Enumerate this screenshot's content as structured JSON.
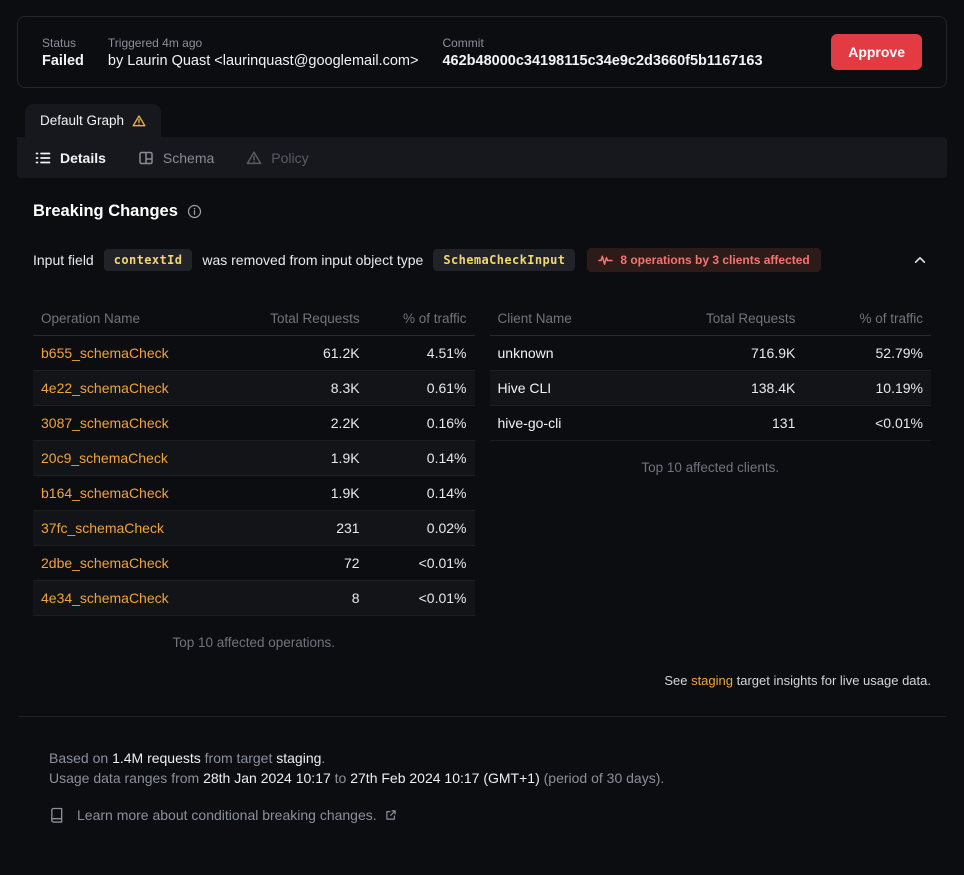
{
  "colors": {
    "accent_orange": "#f2a33c",
    "approve_red": "#e23b43",
    "badge_red_text": "#f4766e",
    "badge_red_bg": "#2d1b1a",
    "warning_amber": "#e3b341",
    "code_yellow": "#f3d673",
    "page_bg": "#0b0d11",
    "panel_bg": "#16181d"
  },
  "icons": {
    "graph_tab": "warning-triangle-icon",
    "details": "list-icon",
    "schema": "schema-columns-icon",
    "policy": "warning-triangle-icon",
    "heading": "info-circle-icon",
    "badge": "activity-pulse-icon",
    "collapse": "chevron-up-icon",
    "learn_more": "book-icon",
    "external": "external-link-icon"
  },
  "header": {
    "status_label": "Status",
    "status_value": "Failed",
    "triggered_label": "Triggered 4m ago",
    "triggered_value": "by Laurin Quast <laurinquast@googlemail.com>",
    "commit_label": "Commit",
    "commit_value": "462b48000c34198115c34e9c2d3660f5b1167163",
    "approve_label": "Approve"
  },
  "tabs": {
    "graph_tab_label": "Default Graph",
    "items": [
      {
        "label": "Details",
        "state": "active"
      },
      {
        "label": "Schema",
        "state": "muted"
      },
      {
        "label": "Policy",
        "state": "dim"
      }
    ]
  },
  "breaking_changes": {
    "title": "Breaking Changes",
    "change": {
      "prefix": "Input field",
      "field_code": "contextId",
      "middle": "was removed from input object type",
      "type_code": "SchemaCheckInput",
      "badge_label": "8 operations by 3 clients affected"
    }
  },
  "operations_table": {
    "headers": [
      "Operation Name",
      "Total Requests",
      "% of traffic"
    ],
    "rows": [
      {
        "name": "b655_schemaCheck",
        "requests": "61.2K",
        "traffic": "4.51%"
      },
      {
        "name": "4e22_schemaCheck",
        "requests": "8.3K",
        "traffic": "0.61%"
      },
      {
        "name": "3087_schemaCheck",
        "requests": "2.2K",
        "traffic": "0.16%"
      },
      {
        "name": "20c9_schemaCheck",
        "requests": "1.9K",
        "traffic": "0.14%"
      },
      {
        "name": "b164_schemaCheck",
        "requests": "1.9K",
        "traffic": "0.14%"
      },
      {
        "name": "37fc_schemaCheck",
        "requests": "231",
        "traffic": "0.02%"
      },
      {
        "name": "2dbe_schemaCheck",
        "requests": "72",
        "traffic": "<0.01%"
      },
      {
        "name": "4e34_schemaCheck",
        "requests": "8",
        "traffic": "<0.01%"
      }
    ],
    "footnote": "Top 10 affected operations."
  },
  "clients_table": {
    "headers": [
      "Client Name",
      "Total Requests",
      "% of traffic"
    ],
    "rows": [
      {
        "name": "unknown",
        "requests": "716.9K",
        "traffic": "52.79%"
      },
      {
        "name": "Hive CLI",
        "requests": "138.4K",
        "traffic": "10.19%"
      },
      {
        "name": "hive-go-cli",
        "requests": "131",
        "traffic": "<0.01%"
      }
    ],
    "footnote": "Top 10 affected clients."
  },
  "insights_note": {
    "prefix": "See ",
    "link": "staging",
    "suffix": " target insights for live usage data."
  },
  "usage_footer": {
    "line1_prefix": "Based on ",
    "line1_requests": "1.4M requests",
    "line1_mid": " from target ",
    "line1_target": "staging",
    "line1_suffix": ".",
    "line2_prefix": "Usage data ranges from ",
    "line2_from": "28th Jan 2024 10:17",
    "line2_mid": " to ",
    "line2_to": "27th Feb 2024 10:17 (GMT+1)",
    "line2_suffix": " (period of 30 days).",
    "learn_more": "Learn more about conditional breaking changes."
  }
}
